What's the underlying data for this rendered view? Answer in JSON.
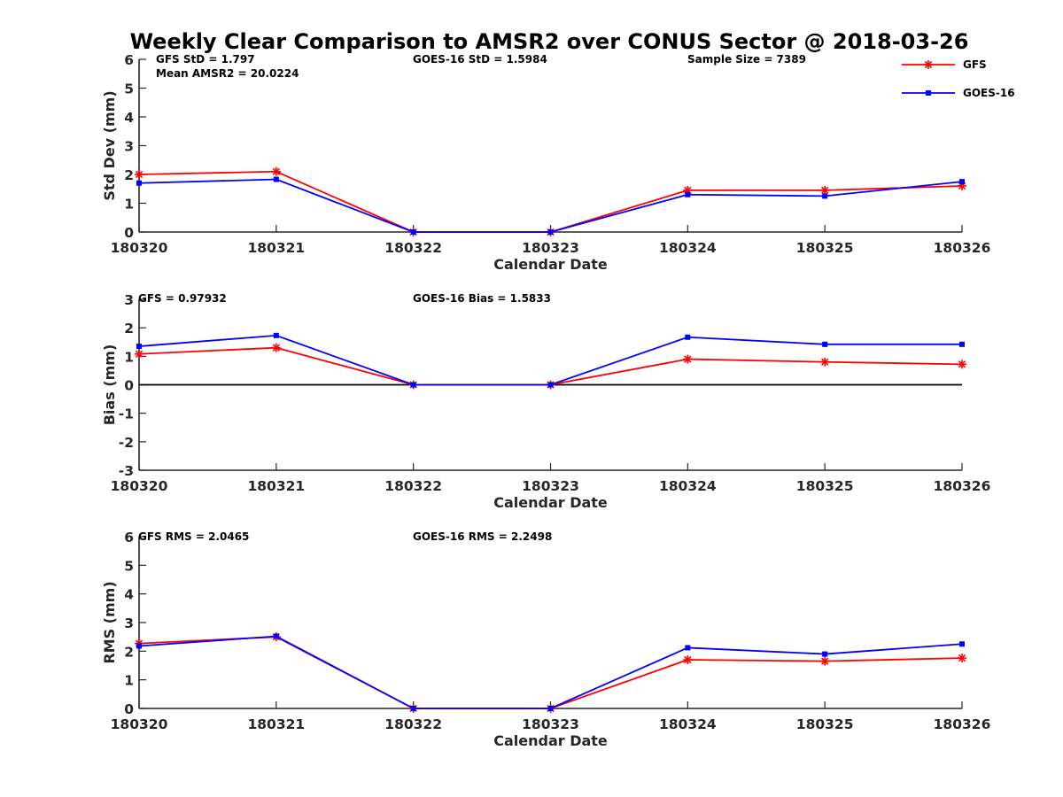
{
  "figure_title": "Weekly Clear Comparison to AMSR2 over CONUS Sector @ 2018-03-26",
  "colors": {
    "GFS": "#ff0000",
    "GOES-16": "#0000ff",
    "zero_line": "#000000"
  },
  "legend": {
    "placement": "top-right",
    "entries": [
      {
        "name": "GFS",
        "color": "#ff0000",
        "marker": "asterisk"
      },
      {
        "name": "GOES-16",
        "color": "#0000ff",
        "marker": "square"
      }
    ]
  },
  "chart_data": [
    {
      "type": "line",
      "xlabel": "Calendar Date",
      "ylabel": "Std Dev (mm)",
      "categories": [
        "180320",
        "180321",
        "180322",
        "180323",
        "180324",
        "180325",
        "180326"
      ],
      "ylim": [
        0,
        6
      ],
      "yticks": [
        0,
        1,
        2,
        3,
        4,
        5,
        6
      ],
      "grid": false,
      "zero_line": false,
      "annotations": [
        "GFS StD = 1.797",
        "Mean AMSR2 = 20.0224",
        "GOES-16 StD = 1.5984",
        "Sample Size = 7389"
      ],
      "series": [
        {
          "name": "GFS",
          "values": [
            2.0,
            2.1,
            0.0,
            0.0,
            1.45,
            1.45,
            1.6
          ]
        },
        {
          "name": "GOES-16",
          "values": [
            1.7,
            1.83,
            0.0,
            0.0,
            1.3,
            1.25,
            1.75
          ]
        }
      ]
    },
    {
      "type": "line",
      "xlabel": "Calendar Date",
      "ylabel": "Bias (mm)",
      "categories": [
        "180320",
        "180321",
        "180322",
        "180323",
        "180324",
        "180325",
        "180326"
      ],
      "ylim": [
        -3,
        3
      ],
      "yticks": [
        -3,
        -2,
        -1,
        0,
        1,
        2,
        3
      ],
      "grid": false,
      "zero_line": true,
      "annotations": [
        "GFS = 0.97932",
        "GOES-16 Bias  = 1.5833"
      ],
      "series": [
        {
          "name": "GFS",
          "values": [
            1.08,
            1.3,
            0.0,
            0.0,
            0.9,
            0.8,
            0.72
          ]
        },
        {
          "name": "GOES-16",
          "values": [
            1.35,
            1.73,
            0.0,
            0.0,
            1.67,
            1.42,
            1.42
          ]
        }
      ]
    },
    {
      "type": "line",
      "xlabel": "Calendar Date",
      "ylabel": "RMS (mm)",
      "categories": [
        "180320",
        "180321",
        "180322",
        "180323",
        "180324",
        "180325",
        "180326"
      ],
      "ylim": [
        0,
        6
      ],
      "yticks": [
        0,
        1,
        2,
        3,
        4,
        5,
        6
      ],
      "grid": false,
      "zero_line": false,
      "annotations": [
        "GFS RMS = 2.0465",
        "GOES-16 RMS = 2.2498"
      ],
      "series": [
        {
          "name": "GFS",
          "values": [
            2.27,
            2.5,
            0.0,
            0.0,
            1.7,
            1.65,
            1.76
          ]
        },
        {
          "name": "GOES-16",
          "values": [
            2.18,
            2.52,
            0.0,
            0.0,
            2.12,
            1.9,
            2.25
          ]
        }
      ]
    }
  ]
}
